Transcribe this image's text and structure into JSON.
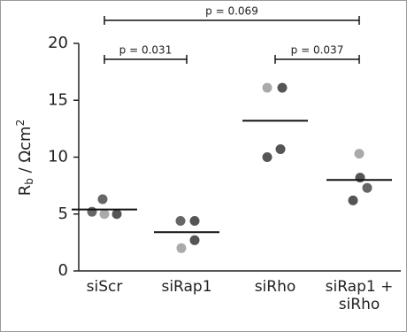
{
  "chart_data": {
    "type": "dot",
    "ylabel": {
      "base": "R",
      "sub": "b",
      "rest": " / Ωcm",
      "sup": "2"
    },
    "categories": [
      "siScr",
      "siRap1",
      "siRho",
      "siRap1 + siRho"
    ],
    "values": [
      [
        5.2,
        6.3,
        5.0,
        5.0
      ],
      [
        4.4,
        4.4,
        2.7,
        2.0
      ],
      [
        16.1,
        16.1,
        10.0,
        10.7
      ],
      [
        10.3,
        8.2,
        7.3,
        6.2
      ]
    ],
    "point_colors": [
      [
        "#666666",
        "#666666",
        "#aaaaaa",
        "#555555"
      ],
      [
        "#666666",
        "#555555",
        "#555555",
        "#aaaaaa"
      ],
      [
        "#aaaaaa",
        "#555555",
        "#555555",
        "#555555"
      ],
      [
        "#aaaaaa",
        "#555555",
        "#666666",
        "#555555"
      ]
    ],
    "means": [
      5.4,
      3.4,
      13.2,
      8.0
    ],
    "ylim": [
      0,
      20
    ],
    "yticks": [
      0,
      5,
      10,
      15,
      20
    ],
    "comparisons": [
      {
        "label": "p = 0.069",
        "from": 0,
        "to": 3
      },
      {
        "label": "p = 0.031",
        "from": 0,
        "to": 1
      },
      {
        "label": "p = 0.037",
        "from": 2,
        "to": 3
      }
    ]
  }
}
